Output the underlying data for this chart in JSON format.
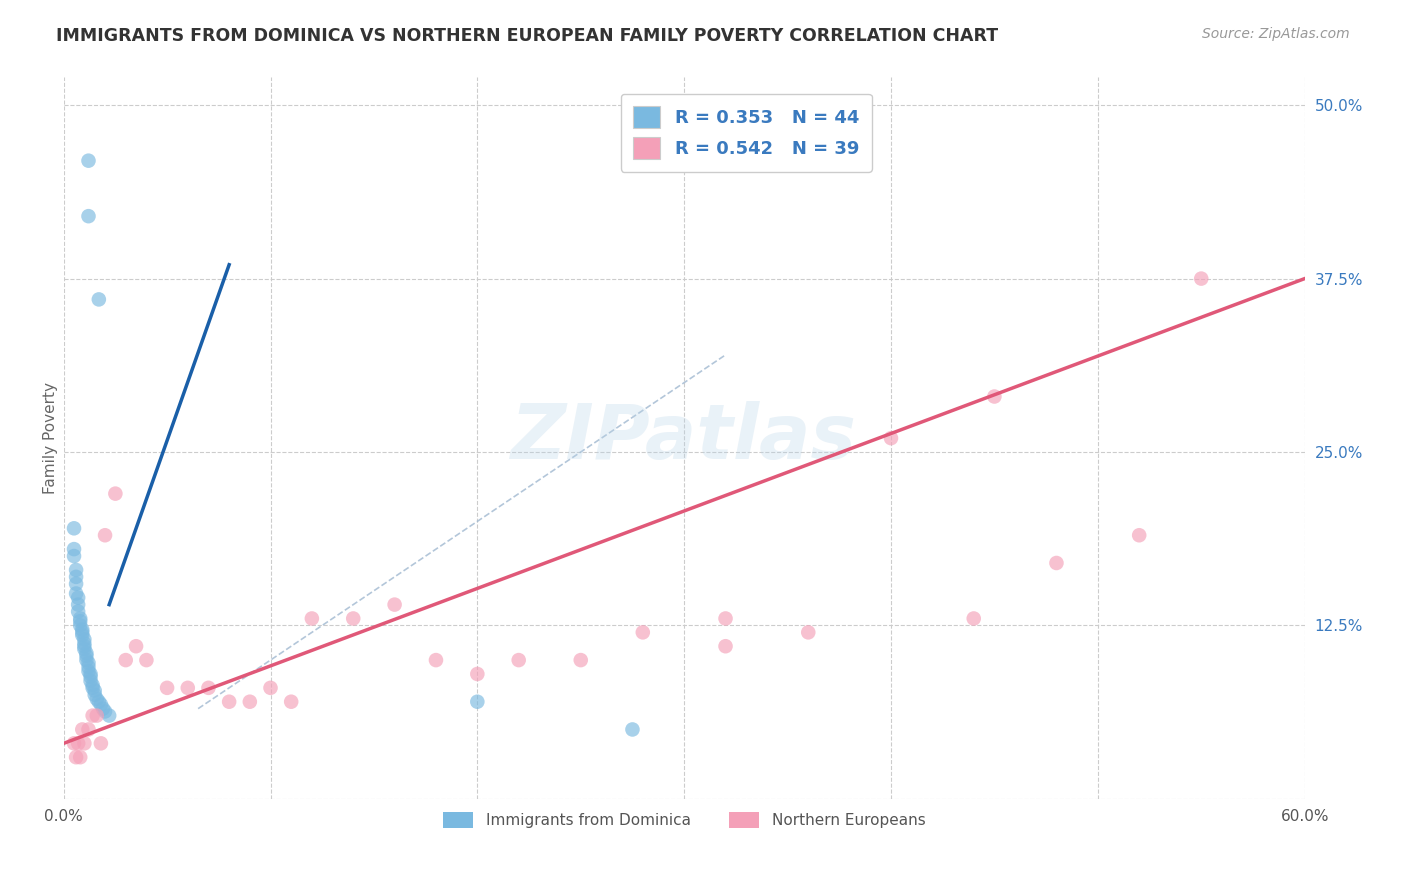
{
  "title": "IMMIGRANTS FROM DOMINICA VS NORTHERN EUROPEAN FAMILY POVERTY CORRELATION CHART",
  "source": "Source: ZipAtlas.com",
  "ylabel": "Family Poverty",
  "xlim": [
    0.0,
    0.6
  ],
  "ylim": [
    0.0,
    0.52
  ],
  "yticks_right": [
    0.0,
    0.125,
    0.25,
    0.375,
    0.5
  ],
  "ytick_right_labels": [
    "",
    "12.5%",
    "25.0%",
    "37.5%",
    "50.0%"
  ],
  "grid_color": "#cccccc",
  "background_color": "#ffffff",
  "legend_R1": "R = 0.353",
  "legend_N1": "N = 44",
  "legend_R2": "R = 0.542",
  "legend_N2": "N = 39",
  "blue_color": "#7ab9e0",
  "pink_color": "#f4a0b8",
  "blue_line_color": "#1a5fa8",
  "pink_line_color": "#e05878",
  "dashed_line_color": "#a0b8d0",
  "dominica_x": [
    0.012,
    0.012,
    0.017,
    0.005,
    0.005,
    0.005,
    0.006,
    0.006,
    0.006,
    0.006,
    0.007,
    0.007,
    0.007,
    0.008,
    0.008,
    0.008,
    0.009,
    0.009,
    0.009,
    0.01,
    0.01,
    0.01,
    0.01,
    0.011,
    0.011,
    0.011,
    0.012,
    0.012,
    0.012,
    0.013,
    0.013,
    0.013,
    0.014,
    0.014,
    0.015,
    0.015,
    0.016,
    0.017,
    0.018,
    0.019,
    0.02,
    0.022,
    0.2,
    0.275
  ],
  "dominica_y": [
    0.46,
    0.42,
    0.36,
    0.195,
    0.18,
    0.175,
    0.165,
    0.16,
    0.155,
    0.148,
    0.145,
    0.14,
    0.135,
    0.13,
    0.128,
    0.125,
    0.122,
    0.12,
    0.118,
    0.115,
    0.112,
    0.11,
    0.108,
    0.105,
    0.103,
    0.1,
    0.098,
    0.095,
    0.092,
    0.09,
    0.088,
    0.085,
    0.082,
    0.08,
    0.078,
    0.075,
    0.072,
    0.07,
    0.068,
    0.065,
    0.063,
    0.06,
    0.07,
    0.05
  ],
  "northern_x": [
    0.005,
    0.006,
    0.007,
    0.008,
    0.009,
    0.01,
    0.012,
    0.014,
    0.016,
    0.018,
    0.02,
    0.025,
    0.03,
    0.035,
    0.04,
    0.05,
    0.06,
    0.07,
    0.08,
    0.09,
    0.1,
    0.11,
    0.12,
    0.14,
    0.16,
    0.18,
    0.2,
    0.22,
    0.25,
    0.28,
    0.32,
    0.36,
    0.4,
    0.44,
    0.48,
    0.52,
    0.55,
    0.32,
    0.45
  ],
  "northern_y": [
    0.04,
    0.03,
    0.04,
    0.03,
    0.05,
    0.04,
    0.05,
    0.06,
    0.06,
    0.04,
    0.19,
    0.22,
    0.1,
    0.11,
    0.1,
    0.08,
    0.08,
    0.08,
    0.07,
    0.07,
    0.08,
    0.07,
    0.13,
    0.13,
    0.14,
    0.1,
    0.09,
    0.1,
    0.1,
    0.12,
    0.11,
    0.12,
    0.26,
    0.13,
    0.17,
    0.19,
    0.375,
    0.13,
    0.29
  ],
  "blue_line_x": [
    0.022,
    0.08
  ],
  "blue_line_y": [
    0.14,
    0.385
  ],
  "pink_line_x": [
    0.0,
    0.6
  ],
  "pink_line_y": [
    0.04,
    0.375
  ],
  "dashed_line_x": [
    0.065,
    0.32
  ],
  "dashed_line_y": [
    0.065,
    0.32
  ]
}
